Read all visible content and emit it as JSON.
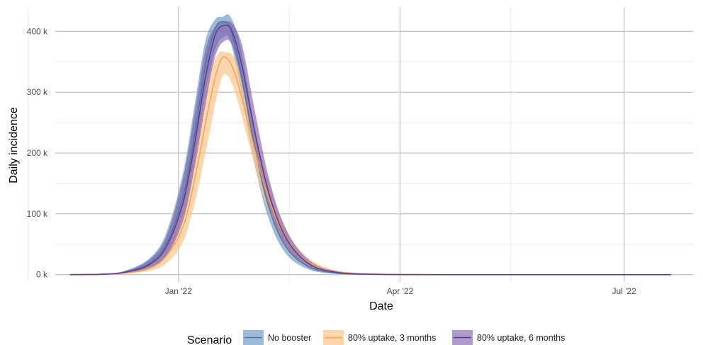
{
  "chart_data": {
    "type": "area",
    "xlabel": "Date",
    "ylabel": "Daily incidence",
    "x_axis": {
      "type": "date",
      "range": [
        "2021-11-12",
        "2022-07-29"
      ],
      "ticks": [
        {
          "date": "2022-01-01",
          "label": "Jan '22"
        },
        {
          "date": "2022-04-01",
          "label": "Apr '22"
        },
        {
          "date": "2022-07-01",
          "label": "Jul '22"
        }
      ],
      "minor_ticks": [
        "2021-11-01",
        "2022-02-15",
        "2022-05-16"
      ]
    },
    "y_axis": {
      "range": [
        -12000,
        440000
      ],
      "ticks": [
        {
          "value": 0,
          "label": "0 k"
        },
        {
          "value": 100000,
          "label": "100 k"
        },
        {
          "value": 200000,
          "label": "200 k"
        },
        {
          "value": 300000,
          "label": "300 k"
        },
        {
          "value": 400000,
          "label": "400 k"
        }
      ],
      "minor_ticks": [
        50000,
        150000,
        250000,
        350000
      ]
    },
    "grid": true,
    "legend": {
      "title": "Scenario",
      "position": "bottom"
    },
    "series": [
      {
        "name": "No booster",
        "line_color": "#4a78ab",
        "band_color": "#6f9ac2",
        "band_opacity": 0.68,
        "points": [
          {
            "date": "2021-11-18",
            "value": 0,
            "lower": 0,
            "upper": 0
          },
          {
            "date": "2021-12-01",
            "value": 800,
            "lower": 400,
            "upper": 1500
          },
          {
            "date": "2021-12-10",
            "value": 4000,
            "lower": 2500,
            "upper": 6000
          },
          {
            "date": "2021-12-20",
            "value": 18000,
            "lower": 12000,
            "upper": 26000
          },
          {
            "date": "2021-12-27",
            "value": 50000,
            "lower": 32000,
            "upper": 68000
          },
          {
            "date": "2022-01-03",
            "value": 130000,
            "lower": 100000,
            "upper": 170000
          },
          {
            "date": "2022-01-08",
            "value": 240000,
            "lower": 200000,
            "upper": 290000
          },
          {
            "date": "2022-01-12",
            "value": 345000,
            "lower": 300000,
            "upper": 385000
          },
          {
            "date": "2022-01-16",
            "value": 405000,
            "lower": 370000,
            "upper": 420000
          },
          {
            "date": "2022-01-19",
            "value": 416000,
            "lower": 390000,
            "upper": 424000
          },
          {
            "date": "2022-01-22",
            "value": 405000,
            "lower": 385000,
            "upper": 425000
          },
          {
            "date": "2022-01-26",
            "value": 340000,
            "lower": 310000,
            "upper": 380000
          },
          {
            "date": "2022-01-31",
            "value": 230000,
            "lower": 200000,
            "upper": 265000
          },
          {
            "date": "2022-02-06",
            "value": 120000,
            "lower": 100000,
            "upper": 145000
          },
          {
            "date": "2022-02-13",
            "value": 50000,
            "lower": 38000,
            "upper": 62000
          },
          {
            "date": "2022-02-22",
            "value": 15000,
            "lower": 10000,
            "upper": 20000
          },
          {
            "date": "2022-03-05",
            "value": 3000,
            "lower": 1500,
            "upper": 4500
          },
          {
            "date": "2022-03-20",
            "value": 500,
            "lower": 200,
            "upper": 900
          },
          {
            "date": "2022-04-15",
            "value": 0,
            "lower": 0,
            "upper": 100
          },
          {
            "date": "2022-07-20",
            "value": 0,
            "lower": 0,
            "upper": 0
          }
        ]
      },
      {
        "name": "80% uptake, 3 months",
        "line_color": "#f2a35a",
        "band_color": "#fdc48a",
        "band_opacity": 0.7,
        "points": [
          {
            "date": "2021-11-18",
            "value": 0,
            "lower": 0,
            "upper": 0
          },
          {
            "date": "2021-12-01",
            "value": 500,
            "lower": 200,
            "upper": 1000
          },
          {
            "date": "2021-12-10",
            "value": 2500,
            "lower": 1200,
            "upper": 4000
          },
          {
            "date": "2021-12-20",
            "value": 10000,
            "lower": 6000,
            "upper": 16000
          },
          {
            "date": "2021-12-27",
            "value": 30000,
            "lower": 18000,
            "upper": 45000
          },
          {
            "date": "2022-01-03",
            "value": 80000,
            "lower": 55000,
            "upper": 120000
          },
          {
            "date": "2022-01-08",
            "value": 165000,
            "lower": 125000,
            "upper": 220000
          },
          {
            "date": "2022-01-13",
            "value": 270000,
            "lower": 220000,
            "upper": 325000
          },
          {
            "date": "2022-01-17",
            "value": 340000,
            "lower": 300000,
            "upper": 362000
          },
          {
            "date": "2022-01-20",
            "value": 358000,
            "lower": 330000,
            "upper": 366000
          },
          {
            "date": "2022-01-24",
            "value": 330000,
            "lower": 300000,
            "upper": 355000
          },
          {
            "date": "2022-01-29",
            "value": 255000,
            "lower": 225000,
            "upper": 290000
          },
          {
            "date": "2022-02-04",
            "value": 160000,
            "lower": 135000,
            "upper": 190000
          },
          {
            "date": "2022-02-11",
            "value": 80000,
            "lower": 65000,
            "upper": 100000
          },
          {
            "date": "2022-02-19",
            "value": 32000,
            "lower": 24000,
            "upper": 42000
          },
          {
            "date": "2022-03-01",
            "value": 9000,
            "lower": 6000,
            "upper": 13000
          },
          {
            "date": "2022-03-12",
            "value": 2500,
            "lower": 1200,
            "upper": 3800
          },
          {
            "date": "2022-03-28",
            "value": 400,
            "lower": 150,
            "upper": 800
          },
          {
            "date": "2022-04-20",
            "value": 0,
            "lower": 0,
            "upper": 100
          },
          {
            "date": "2022-07-20",
            "value": 0,
            "lower": 0,
            "upper": 0
          }
        ]
      },
      {
        "name": "80% uptake, 6 months",
        "line_color": "#5b3a8e",
        "band_color": "#7d5cab",
        "band_opacity": 0.62,
        "points": [
          {
            "date": "2021-11-18",
            "value": 0,
            "lower": 0,
            "upper": 0
          },
          {
            "date": "2021-12-01",
            "value": 700,
            "lower": 350,
            "upper": 1300
          },
          {
            "date": "2021-12-10",
            "value": 3500,
            "lower": 2200,
            "upper": 5500
          },
          {
            "date": "2021-12-20",
            "value": 16000,
            "lower": 11000,
            "upper": 24000
          },
          {
            "date": "2021-12-27",
            "value": 45000,
            "lower": 30000,
            "upper": 62000
          },
          {
            "date": "2022-01-03",
            "value": 120000,
            "lower": 90000,
            "upper": 160000
          },
          {
            "date": "2022-01-08",
            "value": 225000,
            "lower": 185000,
            "upper": 275000
          },
          {
            "date": "2022-01-12",
            "value": 325000,
            "lower": 280000,
            "upper": 370000
          },
          {
            "date": "2022-01-16",
            "value": 395000,
            "lower": 360000,
            "upper": 408000
          },
          {
            "date": "2022-01-20",
            "value": 410000,
            "lower": 385000,
            "upper": 416000
          },
          {
            "date": "2022-01-23",
            "value": 398000,
            "lower": 375000,
            "upper": 412000
          },
          {
            "date": "2022-01-27",
            "value": 340000,
            "lower": 310000,
            "upper": 375000
          },
          {
            "date": "2022-02-01",
            "value": 235000,
            "lower": 205000,
            "upper": 270000
          },
          {
            "date": "2022-02-07",
            "value": 130000,
            "lower": 108000,
            "upper": 155000
          },
          {
            "date": "2022-02-14",
            "value": 58000,
            "lower": 45000,
            "upper": 72000
          },
          {
            "date": "2022-02-23",
            "value": 18000,
            "lower": 12000,
            "upper": 24000
          },
          {
            "date": "2022-03-06",
            "value": 4000,
            "lower": 2200,
            "upper": 6000
          },
          {
            "date": "2022-03-22",
            "value": 600,
            "lower": 250,
            "upper": 1100
          },
          {
            "date": "2022-04-18",
            "value": 0,
            "lower": 0,
            "upper": 100
          },
          {
            "date": "2022-07-20",
            "value": 0,
            "lower": 0,
            "upper": 0
          }
        ]
      }
    ]
  }
}
